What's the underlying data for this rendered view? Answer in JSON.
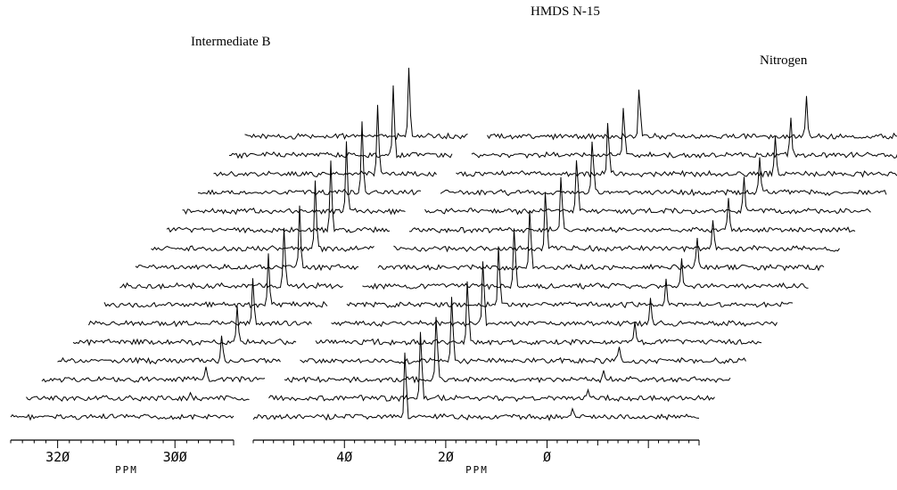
{
  "chart_data": {
    "type": "line",
    "subtype": "stacked NMR spectra (waterfall, broken x-axis)",
    "title": "",
    "xlabel": "PPM",
    "ylabel": "",
    "grid": false,
    "legend": "none",
    "x_axis": {
      "reversed": true,
      "segments": [
        {
          "range": [
            328,
            290
          ],
          "ticks": [
            320,
            300
          ],
          "unit_label": "PPM"
        },
        {
          "range": [
            58,
            -30
          ],
          "ticks": [
            40,
            20,
            0
          ],
          "unit_label": "PPM"
        }
      ],
      "tick_labels": [
        "320",
        "300",
        "40",
        "20",
        "0"
      ]
    },
    "trace_count": 16,
    "peak_labels": [
      {
        "text": "Intermediate B",
        "ppm": 300
      },
      {
        "text": "HMDS N-15",
        "ppm": 28
      },
      {
        "text": "Nitrogen",
        "ppm": -5
      }
    ],
    "series": [
      {
        "name": "Intermediate B",
        "ppm": 300,
        "relative_intensity": [
          0.0,
          0.1,
          0.2,
          0.35,
          0.5,
          0.65,
          0.75,
          0.85,
          0.9,
          0.95,
          1.0,
          1.0,
          1.0,
          1.0,
          1.0,
          1.0
        ]
      },
      {
        "name": "HMDS N-15",
        "ppm": 28,
        "relative_intensity": [
          1.0,
          1.0,
          0.98,
          0.96,
          0.94,
          0.92,
          0.9,
          0.88,
          0.86,
          0.84,
          0.82,
          0.8,
          0.78,
          0.76,
          0.74,
          0.72
        ]
      },
      {
        "name": "Nitrogen",
        "ppm": -5,
        "relative_intensity": [
          0.1,
          0.12,
          0.15,
          0.22,
          0.28,
          0.32,
          0.34,
          0.36,
          0.4,
          0.42,
          0.44,
          0.46,
          0.48,
          0.5,
          0.52,
          0.55
        ]
      }
    ],
    "labels": {
      "intermediate": "Intermediate B",
      "hmds": "HMDS N-15",
      "nitrogen": "Nitrogen"
    }
  }
}
